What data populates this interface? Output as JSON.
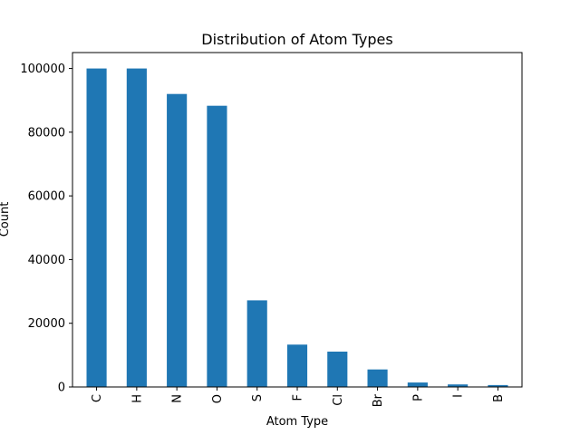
{
  "chart_data": {
    "type": "bar",
    "title": "Distribution of Atom Types",
    "xlabel": "Atom Type",
    "ylabel": "Count",
    "categories": [
      "C",
      "H",
      "N",
      "O",
      "S",
      "F",
      "Cl",
      "Br",
      "P",
      "I",
      "B"
    ],
    "values": [
      100000,
      100000,
      92000,
      88300,
      27200,
      13300,
      11100,
      5500,
      1400,
      800,
      600
    ],
    "ylim": [
      0,
      105000
    ],
    "yticks": [
      0,
      20000,
      40000,
      60000,
      80000,
      100000
    ],
    "grid": false,
    "bar_color": "#1f77b4"
  }
}
